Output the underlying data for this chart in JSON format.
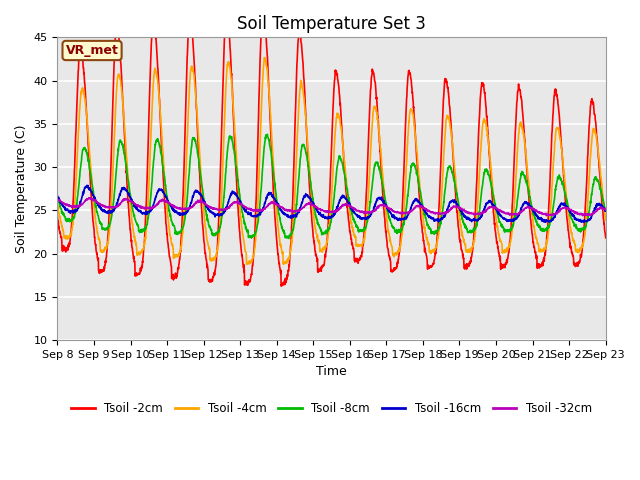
{
  "title": "Soil Temperature Set 3",
  "xlabel": "Time",
  "ylabel": "Soil Temperature (C)",
  "ylim": [
    10,
    45
  ],
  "yticks": [
    10,
    15,
    20,
    25,
    30,
    35,
    40,
    45
  ],
  "date_labels": [
    "Sep 8",
    "Sep 9",
    "Sep 10",
    "Sep 11",
    "Sep 12",
    "Sep 13",
    "Sep 14",
    "Sep 15",
    "Sep 16",
    "Sep 17",
    "Sep 18",
    "Sep 19",
    "Sep 20",
    "Sep 21",
    "Sep 22",
    "Sep 23"
  ],
  "legend_label": "VR_met",
  "series_colors": {
    "Tsoil -2cm": "#FF0000",
    "Tsoil -4cm": "#FFA500",
    "Tsoil -8cm": "#00BB00",
    "Tsoil -16cm": "#0000CC",
    "Tsoil -32cm": "#BB00BB"
  },
  "bg_color": "#E8E8E8",
  "bg_inner_color": "#DCDCDC",
  "grid_color": "#FFFFFF",
  "title_fontsize": 12,
  "axis_fontsize": 9,
  "tick_fontsize": 8,
  "linewidth": 1.2
}
